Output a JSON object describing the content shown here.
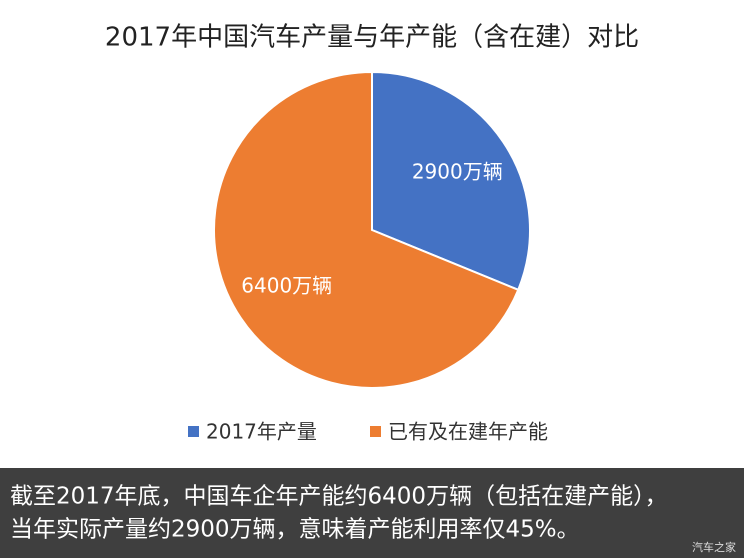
{
  "chart_data": {
    "type": "pie",
    "title": "2017年中国汽车产量与年产能（含在建）对比",
    "categories": [
      "2017年产量",
      "已有及在建年产能"
    ],
    "values": [
      2900,
      6400
    ],
    "value_labels": [
      "2900万辆",
      "6400万辆"
    ],
    "colors": [
      "#4472c4",
      "#ed7d31"
    ],
    "legend": "bottom"
  },
  "caption": [
    "截至2017年底，中国车企年产能约6400万辆（包括在建产能），",
    "当年实际产量约2900万辆，意味着产能利用率仅45%。"
  ],
  "watermark": "汽车之家"
}
